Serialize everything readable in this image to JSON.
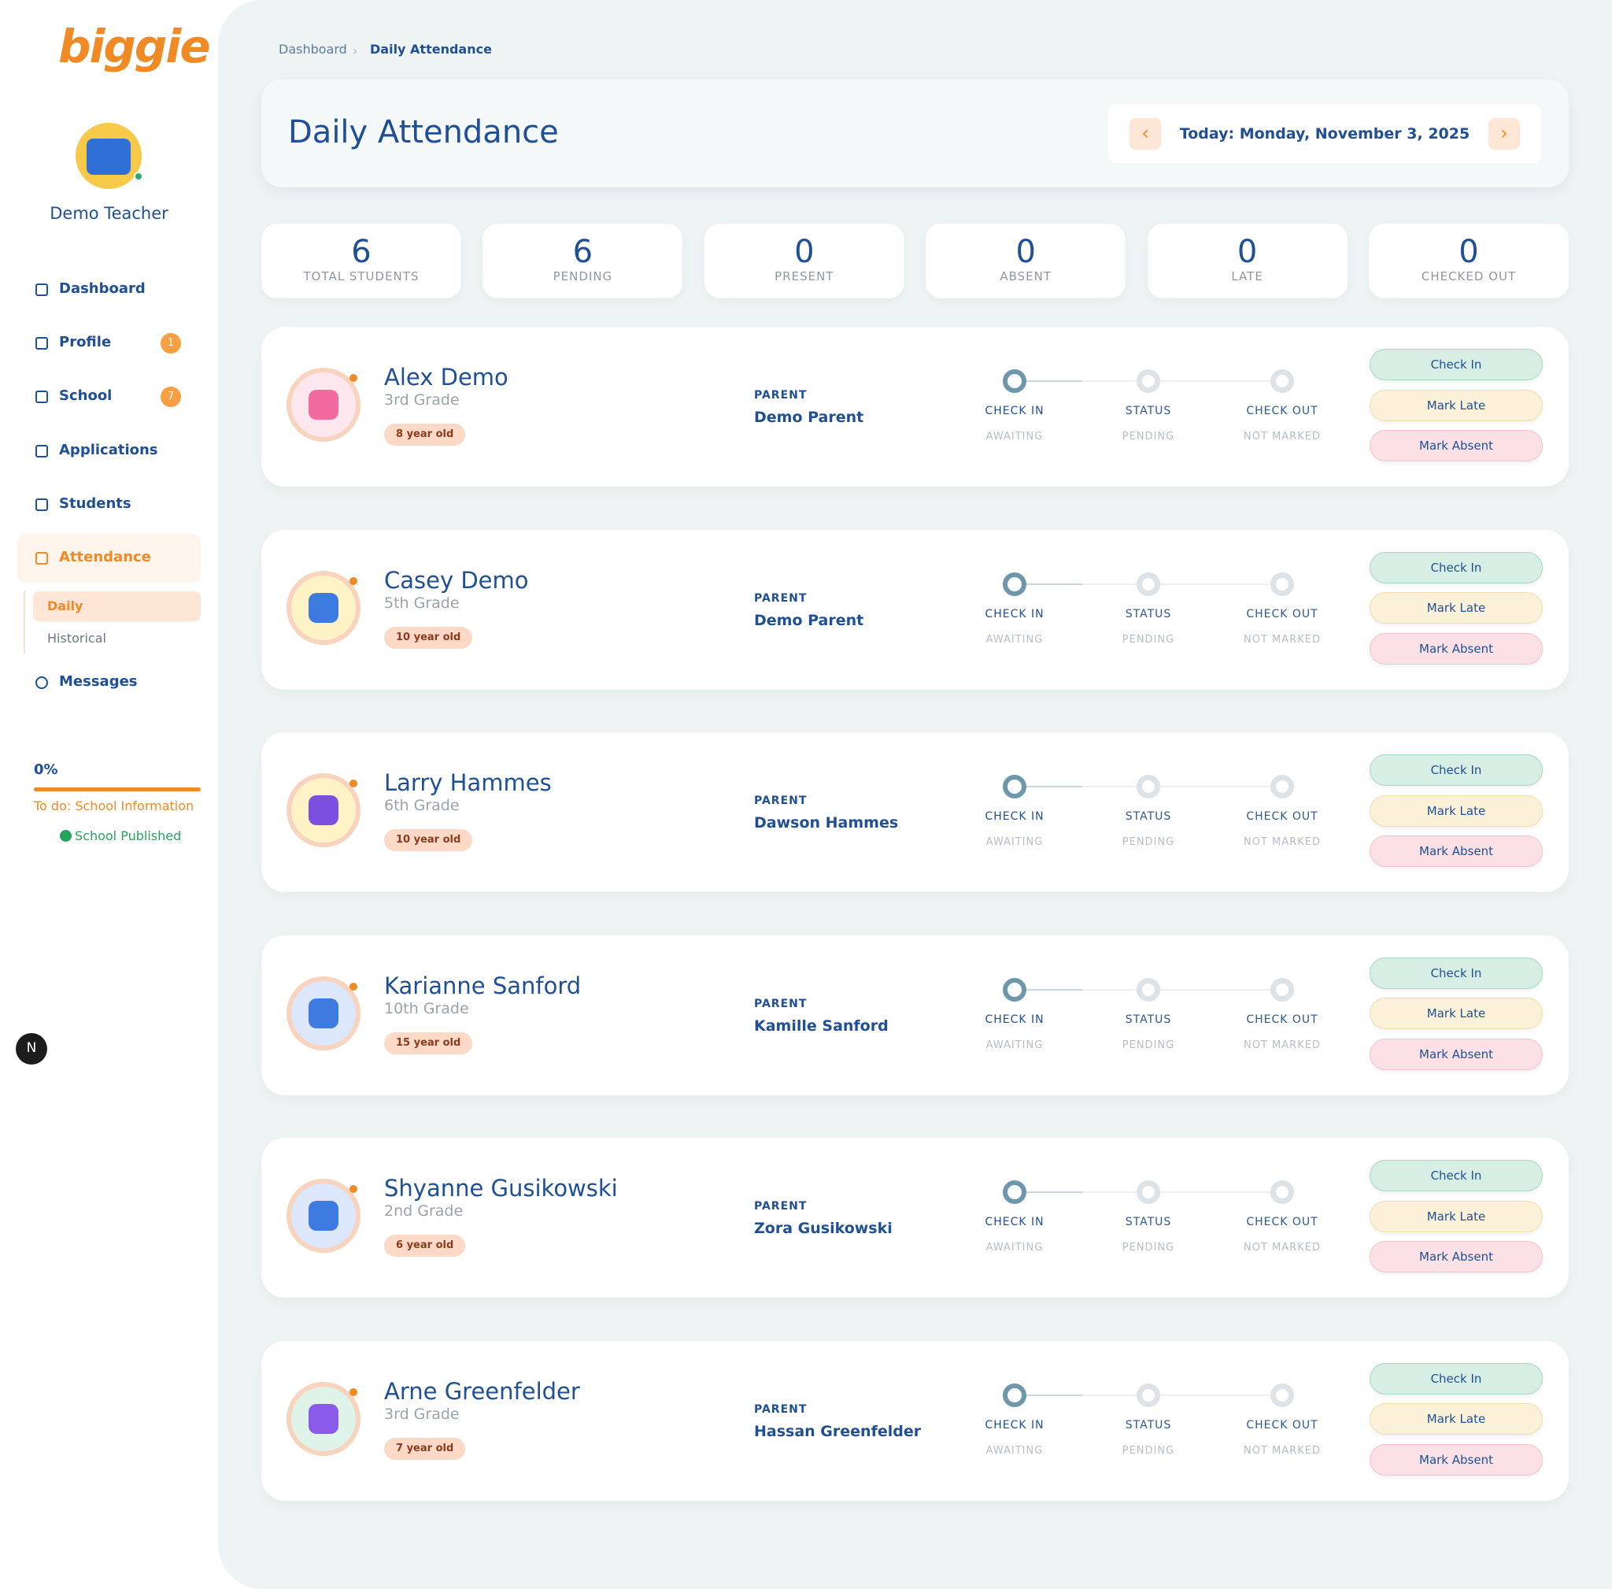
{
  "sidebar": {
    "logo": "biggie",
    "user": "Demo Teacher",
    "nav": [
      {
        "label": "Dashboard"
      },
      {
        "label": "Profile",
        "badge": "1"
      },
      {
        "label": "School",
        "badge": "7"
      },
      {
        "label": "Applications"
      },
      {
        "label": "Students"
      },
      {
        "label": "Attendance"
      }
    ],
    "sub_nav": [
      "Daily",
      "Historical"
    ],
    "messages": "Messages",
    "progress": {
      "percent": "0%",
      "todo": "To do: School Information",
      "status": "School Published"
    },
    "dev_badge": "N"
  },
  "breadcrumb": [
    "Dashboard",
    "Daily Attendance"
  ],
  "header": {
    "title": "Daily Attendance",
    "date": "Today: Monday, November 3, 2025"
  },
  "stats": [
    {
      "value": 6,
      "label": "TOTAL STUDENTS"
    },
    {
      "value": 6,
      "label": "PENDING"
    },
    {
      "value": 0,
      "label": "PRESENT"
    },
    {
      "value": 0,
      "label": "ABSENT"
    },
    {
      "value": 0,
      "label": "LATE"
    },
    {
      "value": 0,
      "label": "CHECKED OUT"
    }
  ],
  "parent_label": "PARENT",
  "steps": [
    {
      "label": "CHECK IN",
      "status": "AWAITING"
    },
    {
      "label": "STATUS",
      "status": "PENDING"
    },
    {
      "label": "CHECK OUT",
      "status": "NOT MARKED"
    }
  ],
  "actions": [
    "Check In",
    "Mark Late",
    "Mark Absent"
  ],
  "students": [
    {
      "name": "Alex Demo",
      "grade": "3rd Grade",
      "age": "8 year old",
      "parent": "Demo Parent"
    },
    {
      "name": "Casey Demo",
      "grade": "5th Grade",
      "age": "10 year old",
      "parent": "Demo Parent"
    },
    {
      "name": "Larry Hammes",
      "grade": "6th Grade",
      "age": "10 year old",
      "parent": "Dawson Hammes"
    },
    {
      "name": "Karianne Sanford",
      "grade": "10th Grade",
      "age": "15 year old",
      "parent": "Kamille Sanford"
    },
    {
      "name": "Shyanne Gusikowski",
      "grade": "2nd Grade",
      "age": "6 year old",
      "parent": "Zora Gusikowski"
    },
    {
      "name": "Arne Greenfelder",
      "grade": "3rd Grade",
      "age": "7 year old",
      "parent": "Hassan Greenfelder"
    }
  ]
}
